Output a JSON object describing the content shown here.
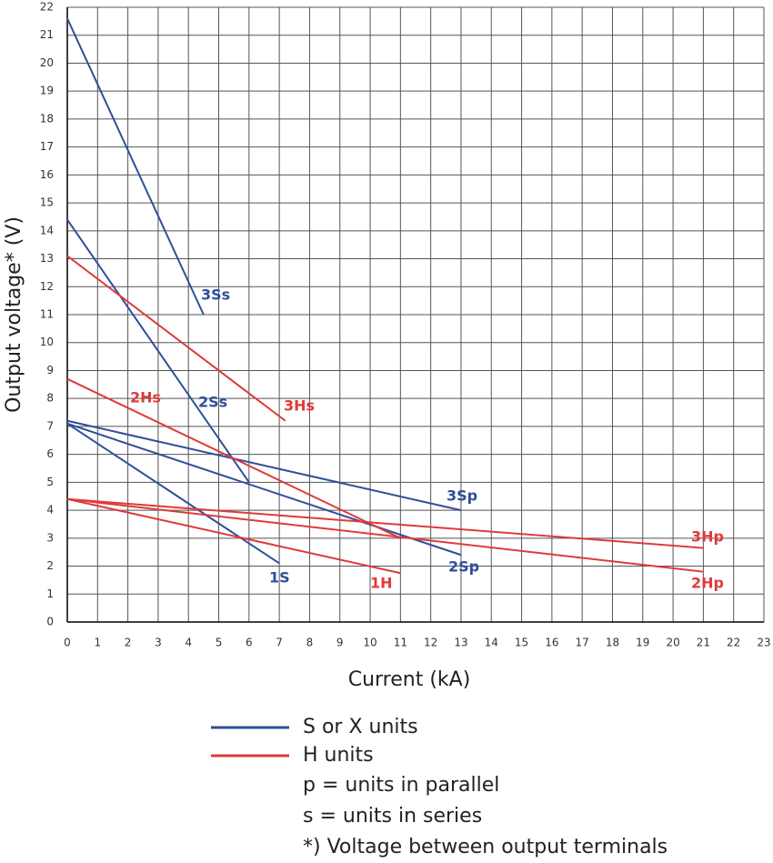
{
  "chart_data": {
    "type": "line",
    "x_label": "Current (kA)",
    "y_label": "Output voltage* (V)",
    "xlim": [
      0,
      23
    ],
    "ylim": [
      0,
      22
    ],
    "xticks": [
      0,
      1,
      2,
      3,
      4,
      5,
      6,
      7,
      8,
      9,
      10,
      11,
      12,
      13,
      14,
      15,
      16,
      17,
      18,
      19,
      20,
      21,
      22,
      23
    ],
    "yticks": [
      0,
      1,
      2,
      3,
      4,
      5,
      6,
      7,
      8,
      9,
      10,
      11,
      12,
      13,
      14,
      15,
      16,
      17,
      18,
      19,
      20,
      21,
      22
    ],
    "grid": true,
    "series": [
      {
        "name": "3Ss",
        "color": "#2e4f9a",
        "x": [
          0,
          4.5
        ],
        "values": [
          21.6,
          11
        ]
      },
      {
        "name": "2Ss",
        "color": "#2e4f9a",
        "x": [
          0,
          6
        ],
        "values": [
          14.4,
          5
        ]
      },
      {
        "name": "3Sp",
        "color": "#2e4f9a",
        "x": [
          0,
          13
        ],
        "values": [
          7.2,
          4
        ]
      },
      {
        "name": "2Sp",
        "color": "#2e4f9a",
        "x": [
          0,
          13
        ],
        "values": [
          7.1,
          2.4
        ]
      },
      {
        "name": "1S",
        "color": "#2e4f9a",
        "x": [
          0,
          7
        ],
        "values": [
          7.1,
          2.1
        ]
      },
      {
        "name": "3Hs",
        "color": "#e03a3a",
        "x": [
          0,
          7.2
        ],
        "values": [
          13.1,
          7.2
        ]
      },
      {
        "name": "2Hs",
        "color": "#e03a3a",
        "x": [
          0,
          11
        ],
        "values": [
          8.7,
          3
        ]
      },
      {
        "name": "3Hp",
        "color": "#e03a3a",
        "x": [
          0,
          21
        ],
        "values": [
          4.4,
          2.65
        ]
      },
      {
        "name": "2Hp",
        "color": "#e03a3a",
        "x": [
          0,
          21
        ],
        "values": [
          4.4,
          1.8
        ]
      },
      {
        "name": "1H",
        "color": "#e03a3a",
        "x": [
          0,
          11
        ],
        "values": [
          4.4,
          1.75
        ]
      }
    ],
    "legend": [
      {
        "name": "S or X units",
        "color": "#2e4f9a"
      },
      {
        "name": "H units",
        "color": "#e03a3a"
      }
    ],
    "notes": [
      "p = units in parallel",
      "s = units in series",
      "*) Voltage between output terminals"
    ]
  }
}
